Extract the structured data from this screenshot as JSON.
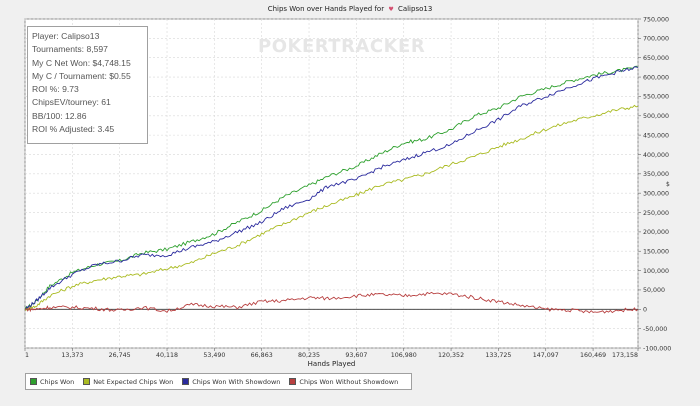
{
  "chart_data": {
    "type": "line",
    "title": "Chips Won over Hands Played for",
    "player_name": "Calipso13",
    "xlabel": "Hands Played",
    "ylabel": "",
    "xlim": [
      1,
      173158
    ],
    "ylim": [
      -100000,
      750000
    ],
    "x_ticks": [
      1,
      13373,
      26745,
      40118,
      53490,
      66863,
      80235,
      93607,
      106980,
      120352,
      133725,
      147097,
      160469,
      173158
    ],
    "x_tick_labels": [
      "1",
      "13,373",
      "26,745",
      "40,118",
      "53,490",
      "66,863",
      "80,235",
      "93,607",
      "106,980",
      "120,352",
      "133,725",
      "147,097",
      "160,469",
      "173,158"
    ],
    "y_ticks": [
      -100000,
      -50000,
      0,
      50000,
      100000,
      150000,
      200000,
      250000,
      300000,
      350000,
      400000,
      450000,
      500000,
      550000,
      600000,
      650000,
      700000,
      750000
    ],
    "y_tick_labels": [
      "-100,000",
      "-50,000",
      "0",
      "50,000",
      "100,000",
      "150,000",
      "200,000",
      "250,000",
      "300,000",
      "350,000",
      "400,000",
      "450,000",
      "500,000",
      "550,000",
      "600,000",
      "650,000",
      "700,000",
      "750,000"
    ],
    "grid": true,
    "legend_position": "bottom-left",
    "series": [
      {
        "name": "Chips Won",
        "color": "#2ea02e",
        "x": [
          1,
          3000,
          7000,
          13373,
          20000,
          26745,
          33000,
          40118,
          47000,
          53490,
          60000,
          66863,
          73000,
          80235,
          86000,
          93607,
          100000,
          106980,
          113000,
          120352,
          127000,
          133725,
          140000,
          147097,
          154000,
          160469,
          167000,
          173158
        ],
        "values": [
          0,
          20000,
          60000,
          95000,
          115000,
          125000,
          145000,
          155000,
          175000,
          195000,
          225000,
          255000,
          290000,
          320000,
          345000,
          370000,
          400000,
          430000,
          440000,
          465000,
          500000,
          520000,
          550000,
          570000,
          590000,
          605000,
          615000,
          625000
        ]
      },
      {
        "name": "Net Expected Chips Won",
        "color": "#aabb22",
        "x": [
          1,
          3000,
          7000,
          13373,
          20000,
          26745,
          33000,
          40118,
          47000,
          53490,
          60000,
          66863,
          73000,
          80235,
          86000,
          93607,
          100000,
          106980,
          113000,
          120352,
          127000,
          133725,
          140000,
          147097,
          154000,
          160469,
          167000,
          173158
        ],
        "values": [
          0,
          8000,
          35000,
          60000,
          75000,
          85000,
          90000,
          105000,
          120000,
          145000,
          165000,
          195000,
          220000,
          250000,
          270000,
          295000,
          320000,
          335000,
          350000,
          375000,
          395000,
          420000,
          440000,
          465000,
          485000,
          500000,
          515000,
          525000
        ]
      },
      {
        "name": "Chips Won With Showdown",
        "color": "#2b2b9e",
        "x": [
          1,
          3000,
          7000,
          13373,
          20000,
          26745,
          33000,
          40118,
          47000,
          53490,
          60000,
          66863,
          73000,
          80235,
          86000,
          93607,
          100000,
          106980,
          113000,
          120352,
          127000,
          133725,
          140000,
          147097,
          154000,
          160469,
          167000,
          173158
        ],
        "values": [
          0,
          20000,
          55000,
          90000,
          115000,
          125000,
          140000,
          140000,
          160000,
          175000,
          200000,
          225000,
          260000,
          285000,
          320000,
          335000,
          365000,
          385000,
          405000,
          425000,
          460000,
          490000,
          525000,
          550000,
          575000,
          595000,
          612000,
          625000
        ]
      },
      {
        "name": "Chips Won Without Showdown",
        "color": "#b84040",
        "x": [
          1,
          3000,
          7000,
          13373,
          20000,
          26745,
          33000,
          40118,
          47000,
          53490,
          60000,
          66863,
          73000,
          80235,
          86000,
          93607,
          100000,
          106980,
          113000,
          120352,
          127000,
          133725,
          140000,
          147097,
          154000,
          160469,
          167000,
          173158
        ],
        "values": [
          0,
          0,
          5000,
          5000,
          2000,
          -3000,
          5000,
          -5000,
          12000,
          8000,
          5000,
          20000,
          22000,
          30000,
          28000,
          35000,
          38000,
          35000,
          40000,
          40000,
          30000,
          20000,
          10000,
          0,
          -2000,
          -8000,
          -3000,
          0
        ]
      }
    ]
  },
  "title_prefix": "Chips Won over Hands Played for",
  "title_flag": "♥",
  "title_player": "Calipso13",
  "watermark": "POKERTRACKER",
  "stats": [
    "Player: Calipso13",
    "Tournaments: 8,597",
    "My C Net Won: $4,748.15",
    "My C / Tournament: $0.55",
    "ROI %: 9.73",
    "ChipsEV/tourney: 61",
    "BB/100: 12.86",
    "ROI % Adjusted: 3.45"
  ],
  "axis_symbol": "$",
  "legend": [
    {
      "label": "Chips Won",
      "color": "#2ea02e"
    },
    {
      "label": "Net Expected Chips Won",
      "color": "#aabb22"
    },
    {
      "label": "Chips Won With Showdown",
      "color": "#2b2b9e"
    },
    {
      "label": "Chips Won Without Showdown",
      "color": "#b84040"
    }
  ]
}
